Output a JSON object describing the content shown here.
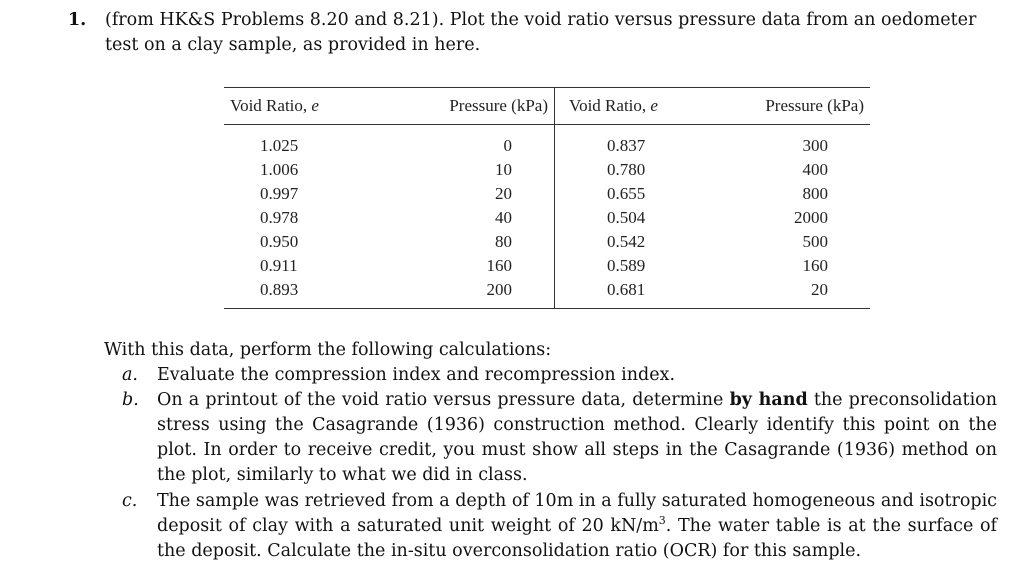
{
  "problem": {
    "number": "1.",
    "line1": "(from HK&S Problems 8.20 and 8.21). Plot the void ratio versus pressure data from an oedometer",
    "line2": "test on a clay sample, as provided in here."
  },
  "table": {
    "headers": {
      "void1": "Void Ratio, ",
      "void1_var": "e",
      "pressure1": "Pressure (kPa)",
      "void2": "Void Ratio, ",
      "void2_var": "e",
      "pressure2": "Pressure (kPa)"
    },
    "rows": [
      {
        "e1": "1.025",
        "p1": "0",
        "e2": "0.837",
        "p2": "300"
      },
      {
        "e1": "1.006",
        "p1": "10",
        "e2": "0.780",
        "p2": "400"
      },
      {
        "e1": "0.997",
        "p1": "20",
        "e2": "0.655",
        "p2": "800"
      },
      {
        "e1": "0.978",
        "p1": "40",
        "e2": "0.504",
        "p2": "2000"
      },
      {
        "e1": "0.950",
        "p1": "80",
        "e2": "0.542",
        "p2": "500"
      },
      {
        "e1": "0.911",
        "p1": "160",
        "e2": "0.589",
        "p2": "160"
      },
      {
        "e1": "0.893",
        "p1": "200",
        "e2": "0.681",
        "p2": "20"
      }
    ]
  },
  "calc": {
    "intro": "With this data, perform the following calculations:",
    "a_label": "a.",
    "a_text": "Evaluate the compression index and recompression index.",
    "b_label": "b.",
    "b_pre": "On a printout of the void ratio versus pressure data, determine ",
    "b_bold": "by hand",
    "b_post": " the preconsolidation stress using the Casagrande (1936) construction method. Clearly identify this point on the plot. In order to receive credit, you must show all steps in the Casagrande (1936) method on the plot, similarly to what we did in class.",
    "c_label": "c.",
    "c_pre": "The sample was retrieved from a depth of 10m in a fully saturated homogeneous and isotropic deposit of clay with a saturated unit weight of 20 kN/m",
    "c_sup": "3",
    "c_post": ". The water table is at the surface of the deposit. Calculate the in-situ overconsolidation ratio (OCR) for this sample."
  }
}
